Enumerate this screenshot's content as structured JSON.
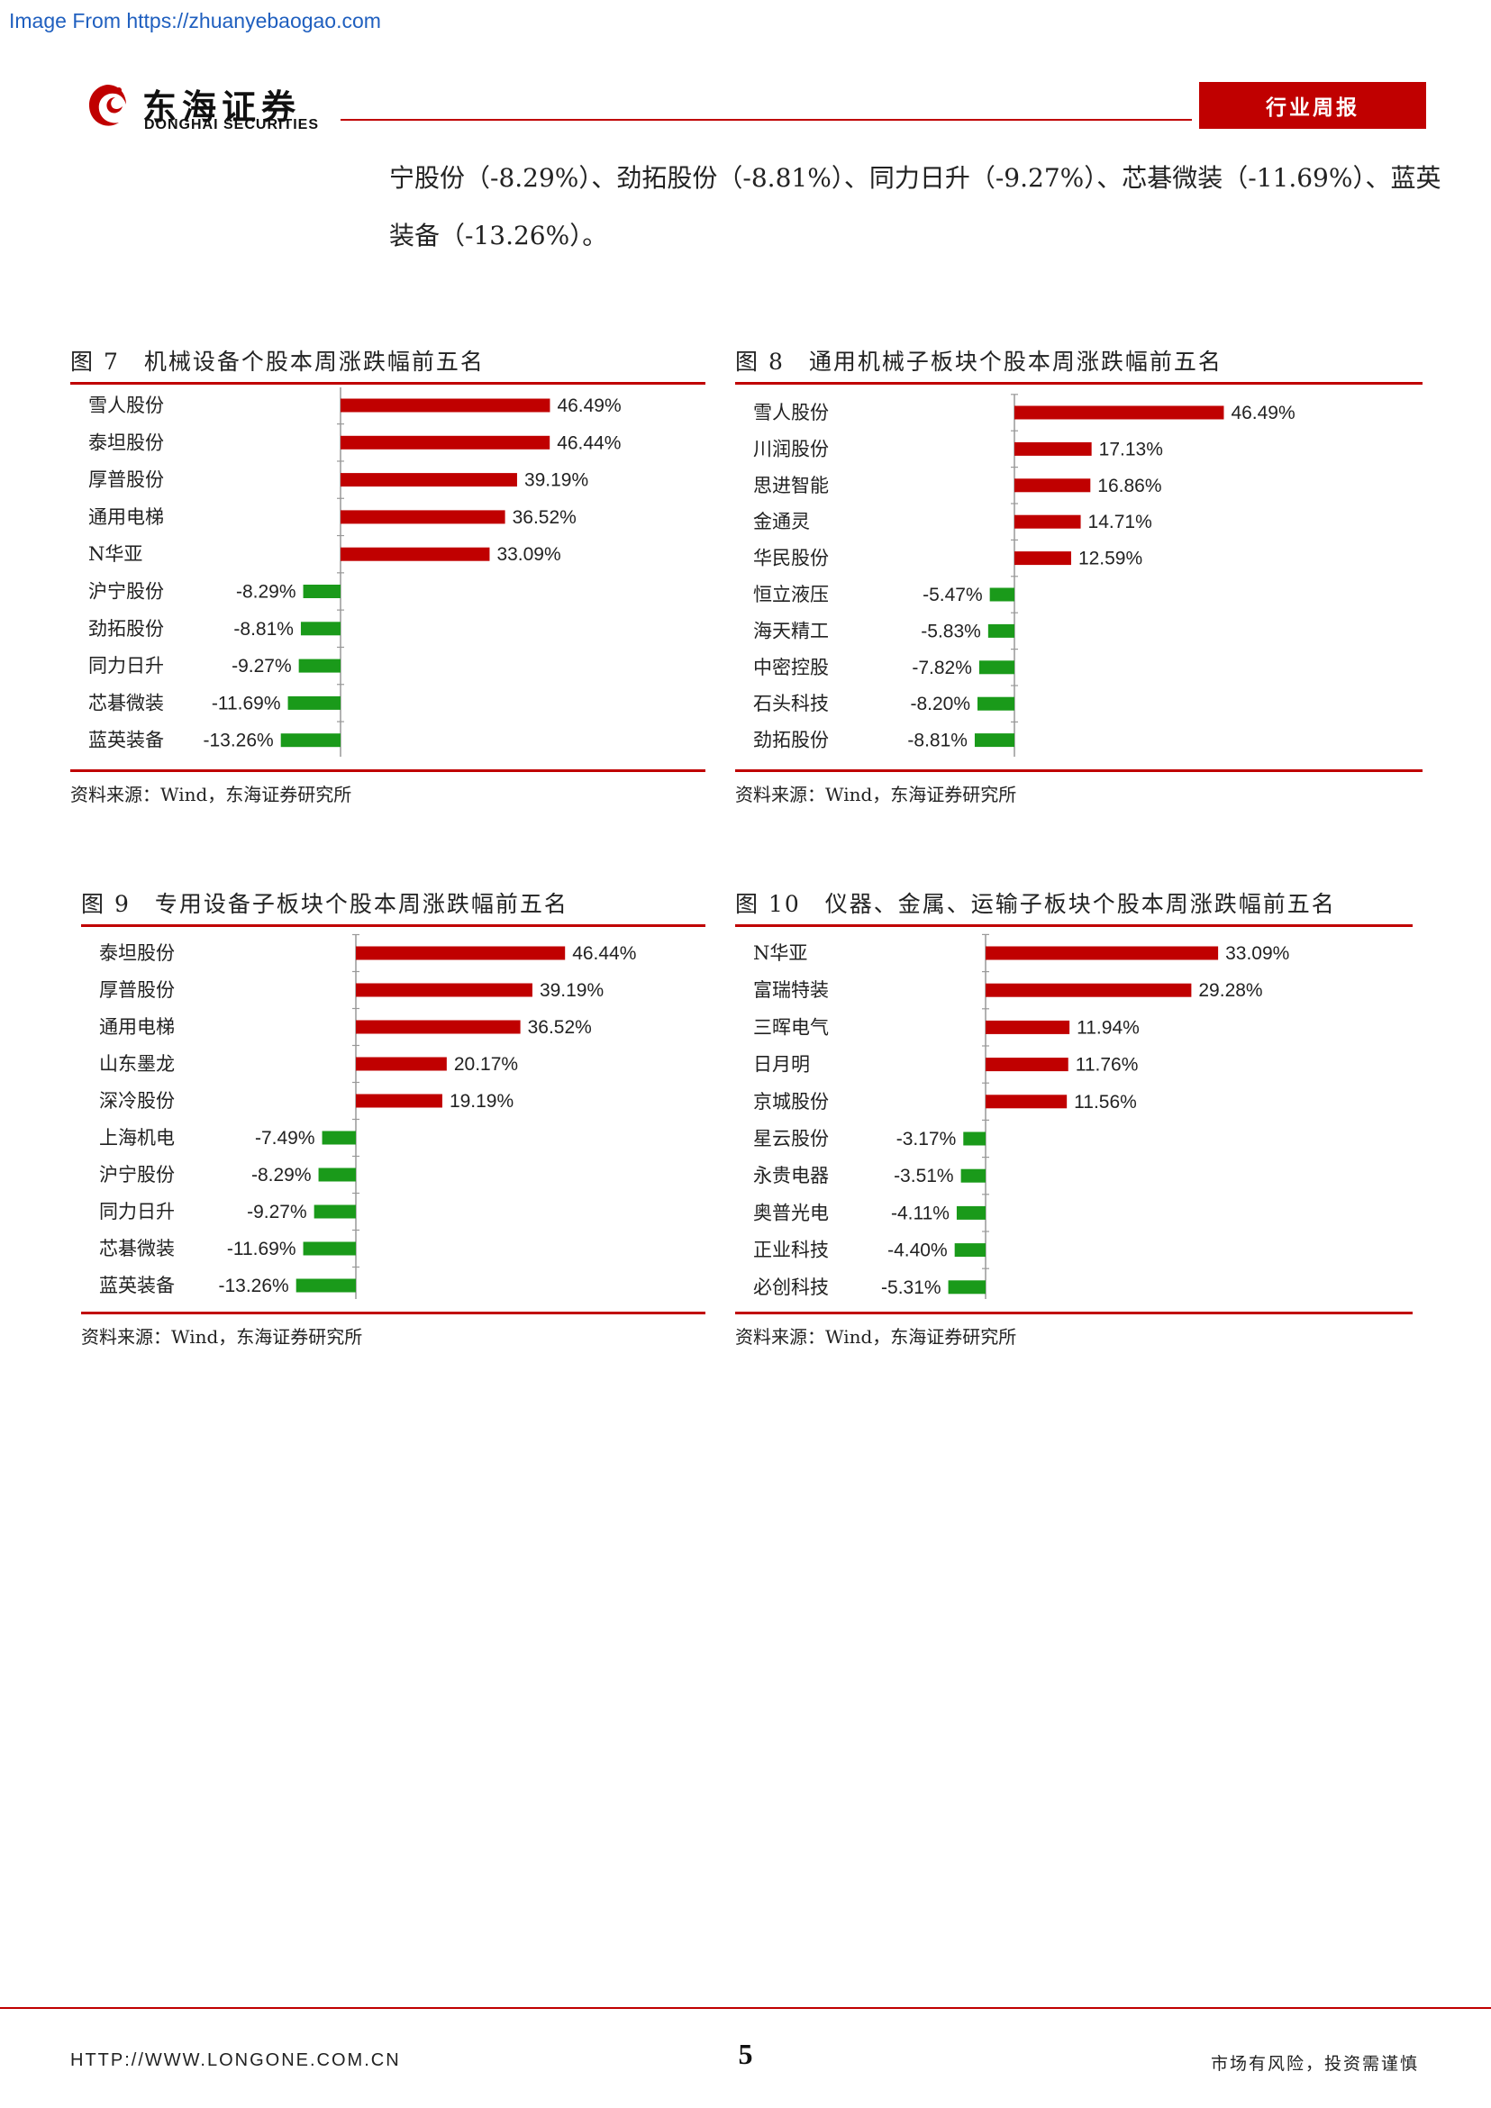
{
  "watermark": "Image From https://zhuanyebaogao.com",
  "header": {
    "logo_cn": "东海证券",
    "logo_en": "DONGHAI SECURITIES",
    "report_type": "行业周报"
  },
  "body_text": {
    "line1": "宁股份（-8.29%）、劲拓股份（-8.81%）、同力日升（-9.27%）、芯碁微装（-11.69%）、蓝英",
    "line2": "装备（-13.26%）。"
  },
  "colors": {
    "accent": "#c00000",
    "up": "#c00000",
    "down": "#1a9a1a"
  },
  "figures": [
    {
      "title": "图 7　机械设备个股本周涨跌幅前五名",
      "source": "资料来源：Wind，东海证券研究所"
    },
    {
      "title": "图 8　通用机械子板块个股本周涨跌幅前五名",
      "source": "资料来源：Wind，东海证券研究所"
    },
    {
      "title": "图 9　专用设备子板块个股本周涨跌幅前五名",
      "source": "资料来源：Wind，东海证券研究所"
    },
    {
      "title": "图 10　仪器、金属、运输子板块个股本周涨跌幅前五名",
      "source": "资料来源：Wind，东海证券研究所"
    }
  ],
  "chart_data": [
    {
      "type": "bar",
      "orientation": "horizontal",
      "grid": false,
      "legend": "none",
      "title": "图 7　机械设备个股本周涨跌幅前五名",
      "categories": [
        "雪人股份",
        "泰坦股份",
        "厚普股份",
        "通用电梯",
        "N华亚",
        "沪宁股份",
        "劲拓股份",
        "同力日升",
        "芯碁微装",
        "蓝英装备"
      ],
      "values": [
        46.49,
        46.44,
        39.19,
        36.52,
        33.09,
        -8.29,
        -8.81,
        -9.27,
        -11.69,
        -13.26
      ],
      "labels": [
        "46.49%",
        "46.44%",
        "39.19%",
        "36.52%",
        "33.09%",
        "-8.29%",
        "-8.81%",
        "-9.27%",
        "-11.69%",
        "-13.26%"
      ],
      "unit": "%"
    },
    {
      "type": "bar",
      "orientation": "horizontal",
      "grid": false,
      "legend": "none",
      "title": "图 8　通用机械子板块个股本周涨跌幅前五名",
      "categories": [
        "雪人股份",
        "川润股份",
        "思进智能",
        "金通灵",
        "华民股份",
        "恒立液压",
        "海天精工",
        "中密控股",
        "石头科技",
        "劲拓股份"
      ],
      "values": [
        46.49,
        17.13,
        16.86,
        14.71,
        12.59,
        -5.47,
        -5.83,
        -7.82,
        -8.2,
        -8.81
      ],
      "labels": [
        "46.49%",
        "17.13%",
        "16.86%",
        "14.71%",
        "12.59%",
        "-5.47%",
        "-5.83%",
        "-7.82%",
        "-8.20%",
        "-8.81%"
      ],
      "unit": "%"
    },
    {
      "type": "bar",
      "orientation": "horizontal",
      "grid": false,
      "legend": "none",
      "title": "图 9　专用设备子板块个股本周涨跌幅前五名",
      "categories": [
        "泰坦股份",
        "厚普股份",
        "通用电梯",
        "山东墨龙",
        "深冷股份",
        "上海机电",
        "沪宁股份",
        "同力日升",
        "芯碁微装",
        "蓝英装备"
      ],
      "values": [
        46.44,
        39.19,
        36.52,
        20.17,
        19.19,
        -7.49,
        -8.29,
        -9.27,
        -11.69,
        -13.26
      ],
      "labels": [
        "46.44%",
        "39.19%",
        "36.52%",
        "20.17%",
        "19.19%",
        "-7.49%",
        "-8.29%",
        "-9.27%",
        "-11.69%",
        "-13.26%"
      ],
      "unit": "%"
    },
    {
      "type": "bar",
      "orientation": "horizontal",
      "grid": false,
      "legend": "none",
      "title": "图 10　仪器、金属、运输子板块个股本周涨跌幅前五名",
      "categories": [
        "N华亚",
        "富瑞特装",
        "三晖电气",
        "日月明",
        "京城股份",
        "星云股份",
        "永贵电器",
        "奥普光电",
        "正业科技",
        "必创科技"
      ],
      "values": [
        33.09,
        29.28,
        11.94,
        11.76,
        11.56,
        -3.17,
        -3.51,
        -4.11,
        -4.4,
        -5.31
      ],
      "labels": [
        "33.09%",
        "29.28%",
        "11.94%",
        "11.76%",
        "11.56%",
        "-3.17%",
        "-3.51%",
        "-4.11%",
        "-4.40%",
        "-5.31%"
      ],
      "unit": "%"
    }
  ],
  "footer": {
    "url": "HTTP://WWW.LONGONE.COM.CN",
    "page_number": "5",
    "risk": "市场有风险，投资需谨慎"
  }
}
